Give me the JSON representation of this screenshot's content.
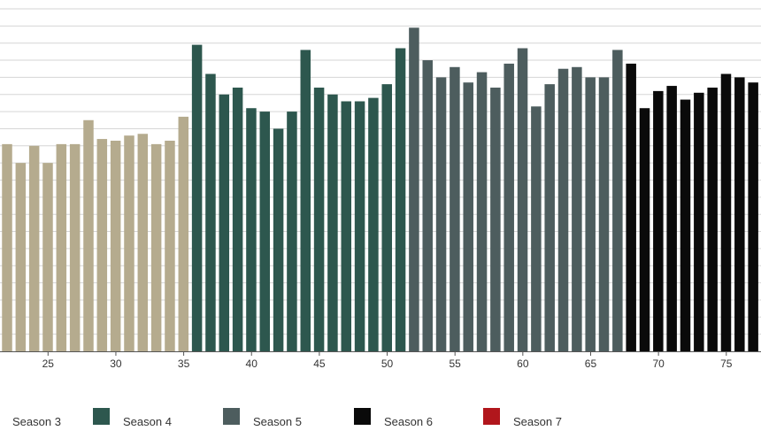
{
  "chart_data": {
    "type": "bar",
    "title": "",
    "xlabel": "",
    "ylabel": "",
    "x_tick_labels": [
      "25",
      "30",
      "35",
      "40",
      "45",
      "50",
      "55",
      "60",
      "65",
      "70",
      "75"
    ],
    "x_visible_range": [
      21.8,
      79.2
    ],
    "ylim": [
      0,
      10
    ],
    "grid": true,
    "legend_position": "bottom",
    "series": [
      {
        "name": "Season 3",
        "color": "#b5ab8e",
        "episodes": [
          22,
          23,
          24,
          25,
          26,
          27,
          28,
          29,
          30,
          31,
          32,
          33,
          34,
          35
        ],
        "values": [
          6.05,
          5.5,
          6.0,
          5.5,
          6.05,
          6.05,
          6.75,
          6.2,
          6.15,
          6.3,
          6.35,
          6.05,
          6.15,
          6.85
        ]
      },
      {
        "name": "Season 4",
        "color": "#2d574e",
        "episodes": [
          36,
          37,
          38,
          39,
          40,
          41,
          42,
          43,
          44,
          45,
          46,
          47,
          48,
          49,
          50,
          51
        ],
        "values": [
          8.95,
          8.1,
          7.5,
          7.7,
          7.1,
          7.0,
          6.5,
          7.0,
          8.8,
          7.7,
          7.5,
          7.3,
          7.3,
          7.4,
          7.8,
          8.85
        ]
      },
      {
        "name": "Season 5",
        "color": "#4d5d5e",
        "episodes": [
          52,
          53,
          54,
          55,
          56,
          57,
          58,
          59,
          60,
          61,
          62,
          63,
          64,
          65,
          66,
          67
        ],
        "values": [
          9.45,
          8.5,
          8.0,
          8.3,
          7.85,
          8.15,
          7.7,
          8.4,
          8.85,
          7.15,
          7.8,
          8.25,
          8.3,
          8.0,
          8.0,
          8.8
        ]
      },
      {
        "name": "Season 6",
        "color": "#0a0a0a",
        "episodes": [
          68,
          69,
          70,
          71,
          72,
          73,
          74,
          75,
          76,
          77,
          78,
          79
        ],
        "values": [
          8.4,
          7.1,
          7.6,
          7.75,
          7.35,
          7.55,
          7.7,
          8.1,
          8.0,
          7.85,
          7.5,
          7.45
        ]
      },
      {
        "name": "Season 7",
        "color": "#b1161c",
        "episodes": [],
        "values": []
      }
    ]
  }
}
